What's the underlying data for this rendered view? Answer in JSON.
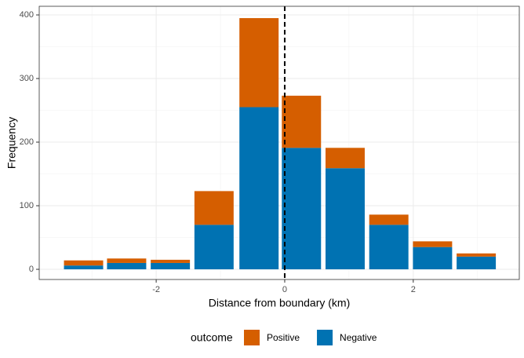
{
  "chart_data": {
    "type": "bar",
    "stacked": true,
    "x": [
      -3.13,
      -2.46,
      -1.78,
      -1.1,
      -0.4,
      0.26,
      0.94,
      1.62,
      2.3,
      2.98
    ],
    "series": [
      {
        "name": "Positive",
        "color": "#D55E00",
        "values": [
          8,
          7,
          5,
          53,
          140,
          82,
          32,
          16,
          9,
          5
        ]
      },
      {
        "name": "Negative",
        "color": "#0072B2",
        "values": [
          6,
          10,
          10,
          70,
          255,
          191,
          159,
          70,
          35,
          20
        ]
      }
    ],
    "xlabel": "Distance from boundary (km)",
    "ylabel": "Frequency",
    "legend_title": "outcome",
    "xlim": [
      -3.82,
      3.65
    ],
    "xticks": [
      -2,
      0,
      2
    ],
    "ylim": [
      -16,
      413.6
    ],
    "yticks": [
      0,
      100,
      200,
      300,
      400
    ],
    "vline": 0,
    "grid": true,
    "legend": "bottom"
  }
}
